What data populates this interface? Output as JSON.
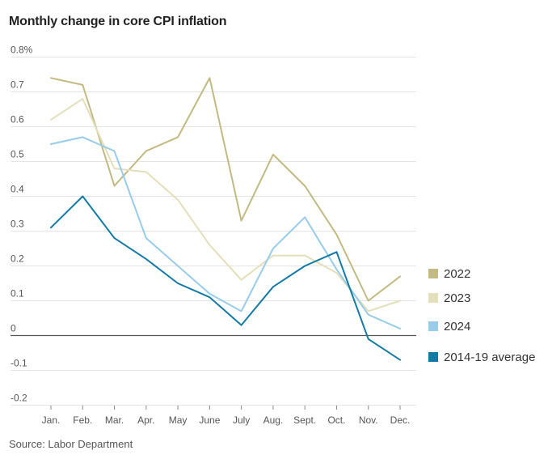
{
  "title": "Monthly change in core CPI inflation",
  "source": "Source: Labor Department",
  "colors": {
    "s2022": "#c2b983",
    "s2023": "#e3dfbc",
    "s2024": "#98cce8",
    "avg": "#137aa3",
    "grid": "#e4e4e4",
    "zero": "#555555"
  },
  "chart_data": {
    "type": "line",
    "title": "Monthly change in core CPI inflation",
    "categories": [
      "Jan.",
      "Feb.",
      "Mar.",
      "Apr.",
      "May",
      "June",
      "July",
      "Aug.",
      "Sept.",
      "Oct.",
      "Nov.",
      "Dec."
    ],
    "ylim": [
      -0.2,
      0.8
    ],
    "y_ticks": [
      -0.2,
      -0.1,
      0,
      0.1,
      0.2,
      0.3,
      0.4,
      0.5,
      0.6,
      0.7,
      0.8
    ],
    "y_tick_labels": [
      "-0.2",
      "-0.1",
      "0",
      "0.1",
      "0.2",
      "0.3",
      "0.4",
      "0.5",
      "0.6",
      "0.7",
      "0.8%"
    ],
    "grid": true,
    "legend_position": "right",
    "series": [
      {
        "name": "2022",
        "color_key": "s2022",
        "values": [
          0.74,
          0.72,
          0.43,
          0.53,
          0.57,
          0.74,
          0.33,
          0.52,
          0.43,
          0.29,
          0.1,
          0.17
        ]
      },
      {
        "name": "2023",
        "color_key": "s2023",
        "values": [
          0.62,
          0.68,
          0.48,
          0.47,
          0.39,
          0.26,
          0.16,
          0.23,
          0.23,
          0.18,
          0.07,
          0.1
        ]
      },
      {
        "name": "2024",
        "color_key": "s2024",
        "values": [
          0.55,
          0.57,
          0.53,
          0.28,
          0.2,
          0.12,
          0.07,
          0.25,
          0.34,
          0.19,
          0.06,
          0.02
        ]
      },
      {
        "name": "2014-19 average",
        "color_key": "avg",
        "values": [
          0.31,
          0.4,
          0.28,
          0.22,
          0.15,
          0.11,
          0.03,
          0.14,
          0.2,
          0.24,
          -0.01,
          -0.07
        ]
      }
    ]
  }
}
